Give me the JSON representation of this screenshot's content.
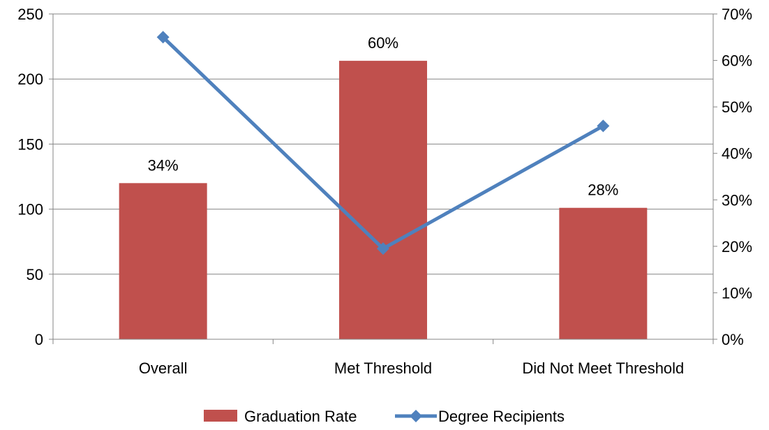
{
  "chart_data": {
    "type": "bar",
    "categories": [
      "Overall",
      "Met Threshold",
      "Did Not Meet Threshold"
    ],
    "series": [
      {
        "name": "Graduation Rate",
        "chart": "bar",
        "axis": "left",
        "values": [
          120,
          214,
          101
        ],
        "data_labels": [
          "34%",
          "60%",
          "28%"
        ],
        "color": "#c0504d"
      },
      {
        "name": "Degree Recipients",
        "chart": "line",
        "axis": "right",
        "marker": "diamond",
        "values": [
          0.65,
          0.195,
          0.459
        ],
        "color": "#4f81bd"
      }
    ],
    "y_left": {
      "ylim": [
        0,
        250
      ],
      "ticks": [
        0,
        50,
        100,
        150,
        200,
        250
      ],
      "tick_labels": [
        "0",
        "50",
        "100",
        "150",
        "200",
        "250"
      ]
    },
    "y_right": {
      "ylim": [
        0,
        0.7
      ],
      "ticks": [
        0,
        0.1,
        0.2,
        0.3,
        0.4,
        0.5,
        0.6,
        0.7
      ],
      "tick_labels": [
        "0%",
        "10%",
        "20%",
        "30%",
        "40%",
        "50%",
        "60%",
        "70%"
      ]
    },
    "grid": "horizontal",
    "legend": "bottom"
  }
}
